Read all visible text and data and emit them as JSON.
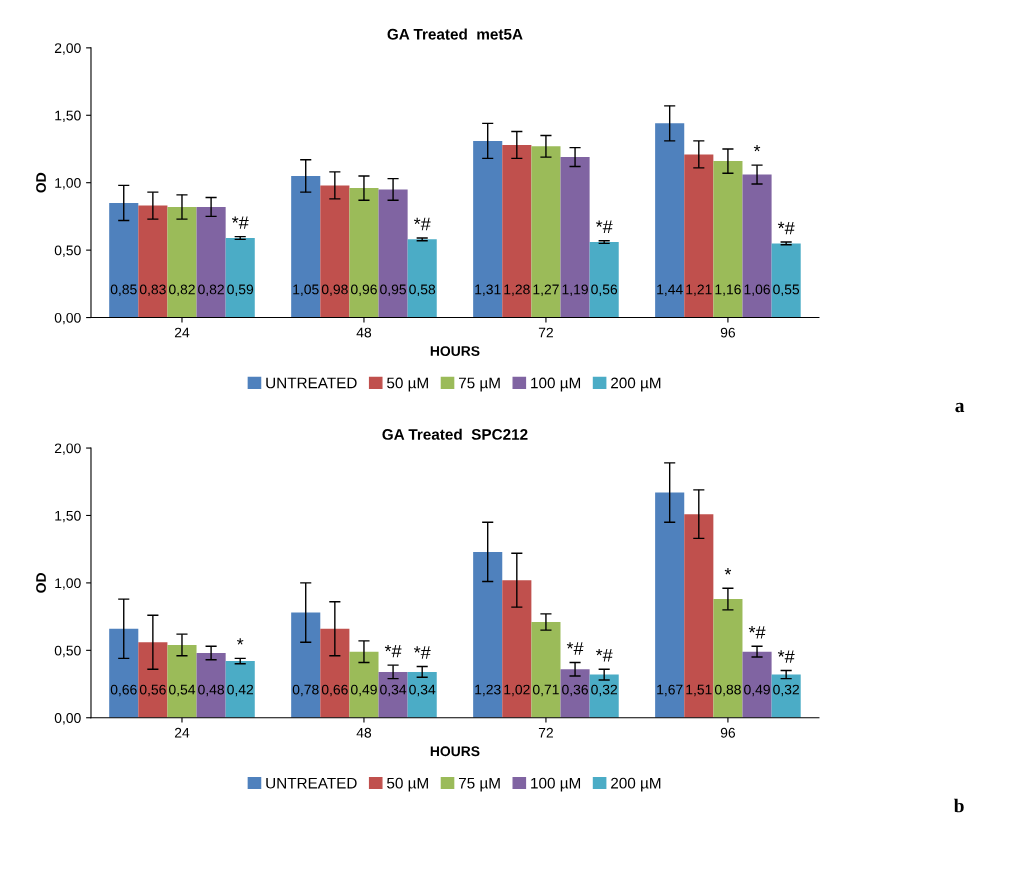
{
  "chart_data": [
    {
      "type": "bar",
      "title": "GA Treated  met5A",
      "xlabel": "HOURS",
      "ylabel": "OD",
      "categories": [
        "24",
        "48",
        "72",
        "96"
      ],
      "series": [
        {
          "name": "UNTREATED",
          "color": "#4f81bd",
          "values": [
            0.85,
            1.05,
            1.31,
            1.44
          ],
          "errors": [
            0.13,
            0.12,
            0.13,
            0.13
          ],
          "value_labels": [
            "0,85",
            "1,05",
            "1,31",
            "1,44"
          ]
        },
        {
          "name": "50 µM",
          "color": "#c0504d",
          "values": [
            0.83,
            0.98,
            1.28,
            1.21
          ],
          "errors": [
            0.1,
            0.1,
            0.1,
            0.1
          ],
          "value_labels": [
            "0,83",
            "0,98",
            "1,28",
            "1,21"
          ]
        },
        {
          "name": "75 µM",
          "color": "#9bbb59",
          "values": [
            0.82,
            0.96,
            1.27,
            1.16
          ],
          "errors": [
            0.09,
            0.09,
            0.08,
            0.09
          ],
          "value_labels": [
            "0,82",
            "0,96",
            "1,27",
            "1,16"
          ]
        },
        {
          "name": "100 µM",
          "color": "#8064a2",
          "values": [
            0.82,
            0.95,
            1.19,
            1.06
          ],
          "errors": [
            0.07,
            0.08,
            0.07,
            0.07
          ],
          "value_labels": [
            "0,82",
            "0,95",
            "1,19",
            "1,06"
          ]
        },
        {
          "name": "200 µM",
          "color": "#4bacc6",
          "values": [
            0.59,
            0.58,
            0.56,
            0.55
          ],
          "errors": [
            0.01,
            0.01,
            0.01,
            0.01
          ],
          "value_labels": [
            "0,59",
            "0,58",
            "0,56",
            "0,55"
          ]
        }
      ],
      "ylim": [
        0,
        2
      ],
      "yticks": [
        {
          "value": 0,
          "label": "0,00"
        },
        {
          "value": 0.5,
          "label": "0,50"
        },
        {
          "value": 1,
          "label": "1,00"
        },
        {
          "value": 1.5,
          "label": "1,50"
        },
        {
          "value": 2,
          "label": "2,00"
        }
      ],
      "annotations": [
        "*#",
        "*#",
        "*#",
        "*",
        "*#",
        "a"
      ],
      "legend": "bottom",
      "grid": false
    },
    {
      "type": "bar",
      "title": "GA Treated  SPC212",
      "xlabel": "HOURS",
      "ylabel": "OD",
      "categories": [
        "24",
        "48",
        "72",
        "96"
      ],
      "series": [
        {
          "name": "UNTREATED",
          "color": "#4f81bd",
          "values": [
            0.66,
            0.78,
            1.23,
            1.67
          ],
          "errors": [
            0.22,
            0.22,
            0.22,
            0.22
          ],
          "value_labels": [
            "0,66",
            "0,78",
            "1,23",
            "1,67"
          ]
        },
        {
          "name": "50 µM",
          "color": "#c0504d",
          "values": [
            0.56,
            0.66,
            1.02,
            1.51
          ],
          "errors": [
            0.2,
            0.2,
            0.2,
            0.18
          ],
          "value_labels": [
            "0,56",
            "0,66",
            "1,02",
            "1,51"
          ]
        },
        {
          "name": "75 µM",
          "color": "#9bbb59",
          "values": [
            0.54,
            0.49,
            0.71,
            0.88
          ],
          "errors": [
            0.08,
            0.08,
            0.06,
            0.08
          ],
          "value_labels": [
            "0,54",
            "0,49",
            "0,71",
            "0,88"
          ]
        },
        {
          "name": "100 µM",
          "color": "#8064a2",
          "values": [
            0.48,
            0.34,
            0.36,
            0.49
          ],
          "errors": [
            0.05,
            0.05,
            0.05,
            0.04
          ],
          "value_labels": [
            "0,48",
            "0,34",
            "0,36",
            "0,49"
          ]
        },
        {
          "name": "200 µM",
          "color": "#4bacc6",
          "values": [
            0.42,
            0.34,
            0.32,
            0.32
          ],
          "errors": [
            0.02,
            0.04,
            0.04,
            0.03
          ],
          "value_labels": [
            "0,42",
            "0,34",
            "0,32",
            "0,32"
          ]
        }
      ],
      "ylim": [
        0,
        2
      ],
      "yticks": [
        {
          "value": 0,
          "label": "0,00"
        },
        {
          "value": 0.5,
          "label": "0,50"
        },
        {
          "value": 1,
          "label": "1,00"
        },
        {
          "value": 1.5,
          "label": "1,50"
        },
        {
          "value": 2,
          "label": "2,00"
        }
      ],
      "annotations": [
        "*",
        "*#",
        "*#",
        "*#",
        "*#",
        "*",
        "*#",
        "*#",
        "b"
      ],
      "legend": "bottom",
      "grid": false
    }
  ]
}
